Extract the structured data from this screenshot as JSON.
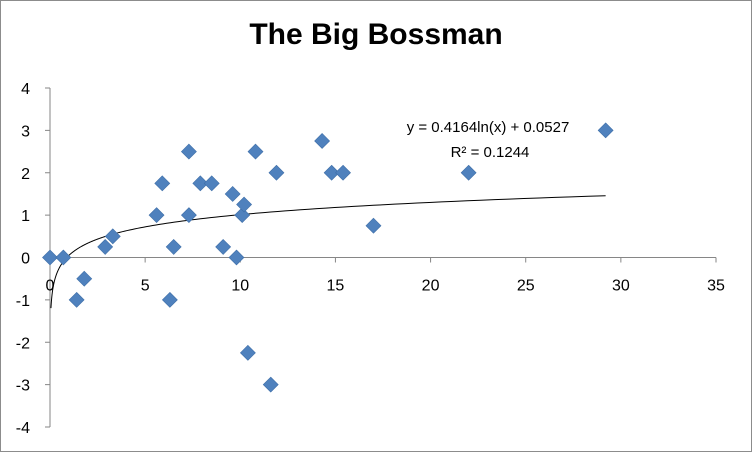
{
  "chart_data": {
    "type": "scatter",
    "title": "The Big Bossman",
    "xlabel": "",
    "ylabel": "",
    "xlim": [
      0,
      35
    ],
    "ylim": [
      -4,
      4
    ],
    "x_ticks": [
      "0",
      "5",
      "10",
      "15",
      "20",
      "25",
      "30",
      "35"
    ],
    "y_ticks": [
      "4",
      "3",
      "2",
      "1",
      "0",
      "-1",
      "-2",
      "-3",
      "-4"
    ],
    "grid": false,
    "legend": "none",
    "marker_color": "#4f81bd",
    "points": [
      {
        "x": 0,
        "y": 0
      },
      {
        "x": 0.7,
        "y": 0
      },
      {
        "x": 1.4,
        "y": -1
      },
      {
        "x": 1.8,
        "y": -0.5
      },
      {
        "x": 2.9,
        "y": 0.25
      },
      {
        "x": 3.3,
        "y": 0.5
      },
      {
        "x": 5.6,
        "y": 1
      },
      {
        "x": 5.9,
        "y": 1.75
      },
      {
        "x": 6.3,
        "y": -1
      },
      {
        "x": 6.5,
        "y": 0.25
      },
      {
        "x": 7.3,
        "y": 2.5
      },
      {
        "x": 7.3,
        "y": 1
      },
      {
        "x": 7.9,
        "y": 1.75
      },
      {
        "x": 8.5,
        "y": 1.75
      },
      {
        "x": 9.1,
        "y": 0.25
      },
      {
        "x": 9.6,
        "y": 1.5
      },
      {
        "x": 9.8,
        "y": 0
      },
      {
        "x": 10.1,
        "y": 1
      },
      {
        "x": 10.2,
        "y": 1.25
      },
      {
        "x": 10.4,
        "y": -2.25
      },
      {
        "x": 10.8,
        "y": 2.5
      },
      {
        "x": 11.6,
        "y": -3
      },
      {
        "x": 11.9,
        "y": 2
      },
      {
        "x": 14.3,
        "y": 2.75
      },
      {
        "x": 14.8,
        "y": 2
      },
      {
        "x": 15.4,
        "y": 2
      },
      {
        "x": 17,
        "y": 0.75
      },
      {
        "x": 22,
        "y": 2
      },
      {
        "x": 29.2,
        "y": 3
      }
    ],
    "trendline": {
      "type": "logarithmic",
      "a": 0.4164,
      "b": 0.0527,
      "equation_label": "y = 0.4164ln(x) + 0.0527",
      "r2_label": "R² = 0.1244"
    }
  }
}
